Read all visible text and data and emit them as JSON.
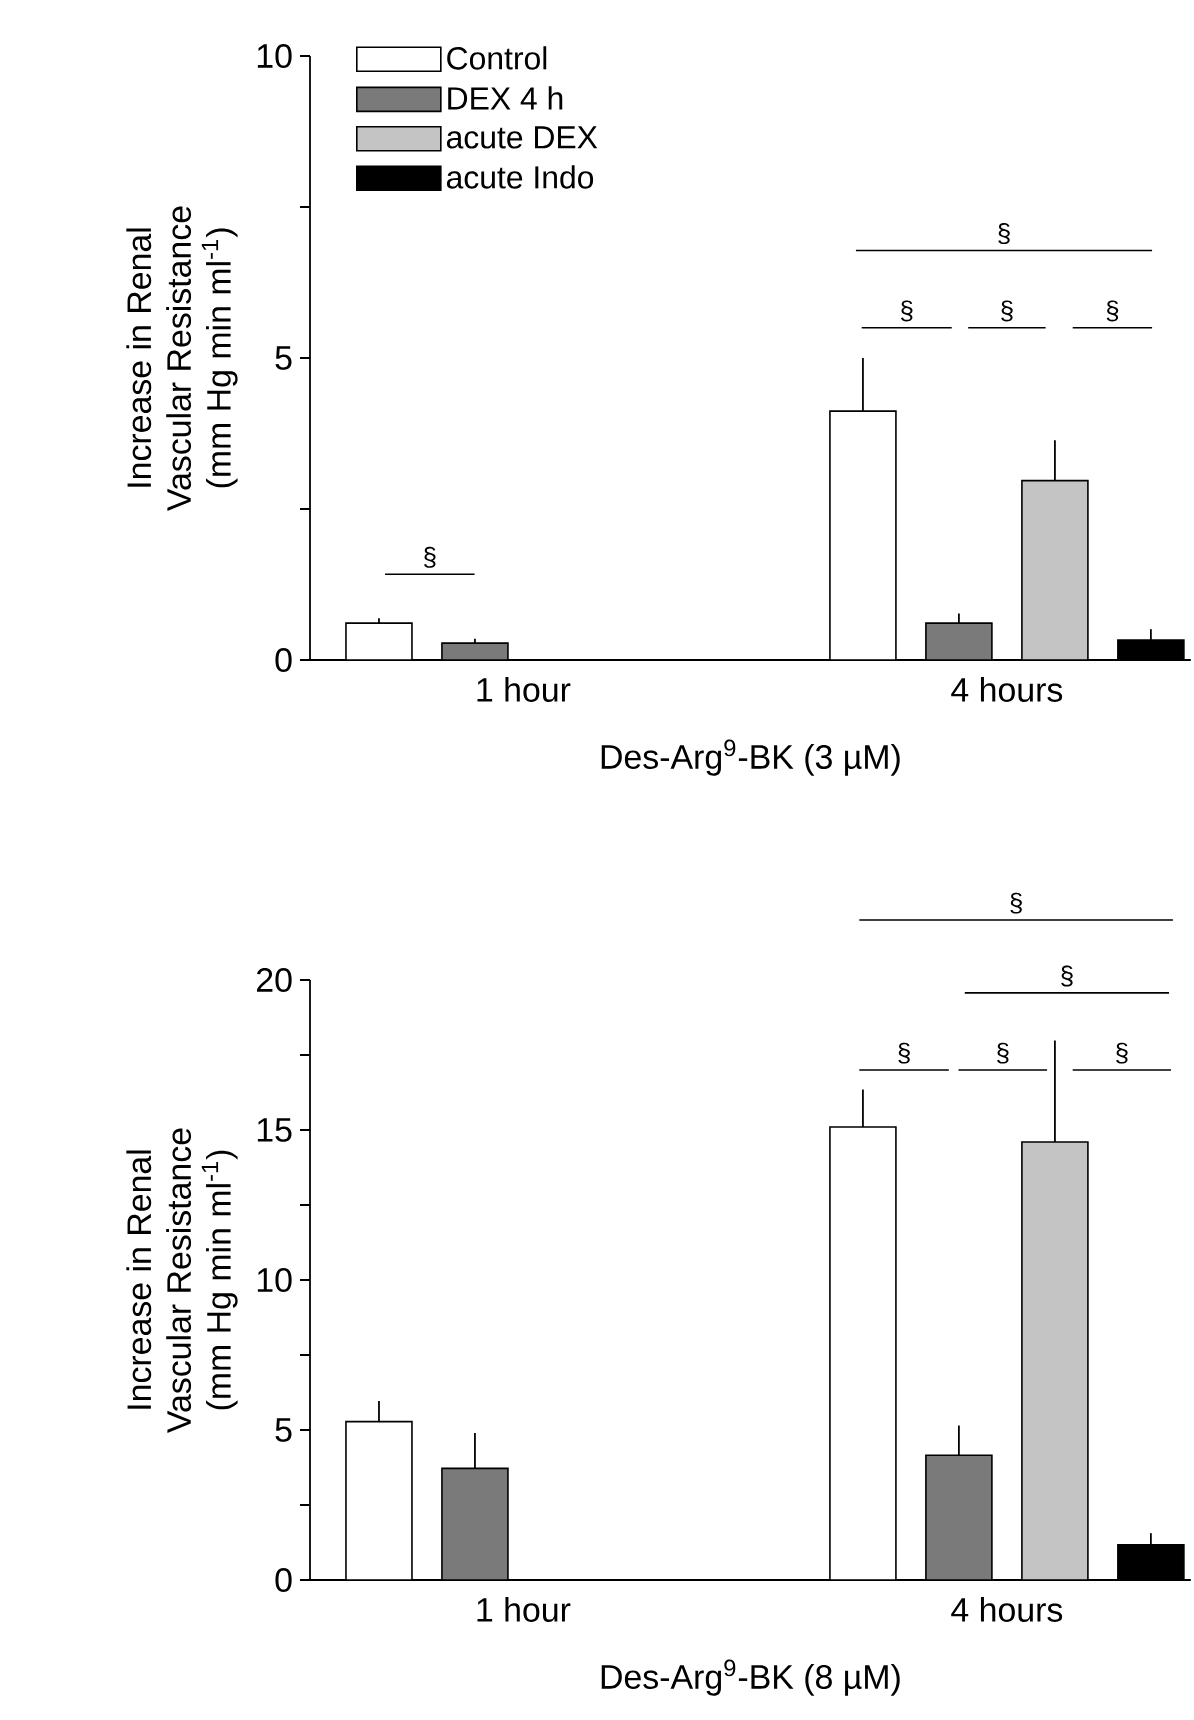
{
  "chart_data": [
    {
      "type": "bar",
      "categories": [
        "1 hour",
        "4 hours"
      ],
      "xlabel": "Des-Arg$^{9}$-BK (3 µM)",
      "ylabel": "Increase in Renal\nVascular Resistance\n(mm Hg min ml$^{-1}$)",
      "ylim": [
        0,
        10
      ],
      "yticks": [
        0,
        {
          "value": 2.5,
          "label": null
        },
        5,
        {
          "value": 7.5,
          "label": null
        },
        10
      ],
      "legend": "top left",
      "series": [
        {
          "name": "Control",
          "color": "#ffffff",
          "values": [
            0.61,
            4.12
          ],
          "errors": [
            0.08,
            0.88
          ]
        },
        {
          "name": "DEX 4 h",
          "color": "#7a7a7a",
          "values": [
            0.28,
            0.61
          ],
          "errors": [
            0.07,
            0.16
          ]
        },
        {
          "name": "acute DEX",
          "color": "#c4c4c4",
          "values": [
            null,
            2.97
          ],
          "errors": [
            null,
            0.67
          ]
        },
        {
          "name": "acute Indo",
          "color": "#000000",
          "values": [
            null,
            0.33
          ],
          "errors": [
            null,
            0.18
          ]
        }
      ],
      "annotations": [
        "§",
        "§",
        "§",
        "§",
        "§"
      ]
    },
    {
      "type": "bar",
      "categories": [
        "1 hour",
        "4 hours"
      ],
      "xlabel": "Des-Arg$^{9}$-BK (8 µM)",
      "ylabel": "Increase in Renal\nVascular Resistance\n(mm Hg min ml$^{-1}$)",
      "ylim": [
        0,
        20
      ],
      "yticks": [
        0,
        {
          "value": 2.5,
          "label": null
        },
        5,
        {
          "value": 7.5,
          "label": null
        },
        10,
        {
          "value": 12.5,
          "label": null
        },
        15,
        {
          "value": 17.5,
          "label": null
        },
        20
      ],
      "series": [
        {
          "color": "#ffffff",
          "values": [
            5.28,
            15.1
          ],
          "errors": [
            0.69,
            1.25
          ]
        },
        {
          "color": "#7a7a7a",
          "values": [
            3.72,
            4.16
          ],
          "errors": [
            1.18,
            0.99
          ]
        },
        {
          "color": "#c4c4c4",
          "values": [
            null,
            14.6
          ],
          "errors": [
            null,
            3.38
          ]
        },
        {
          "color": "#000000",
          "values": [
            null,
            1.17
          ],
          "errors": [
            null,
            0.39
          ]
        }
      ],
      "annotations": [
        "§",
        "§",
        "§",
        "§",
        "§"
      ]
    }
  ]
}
